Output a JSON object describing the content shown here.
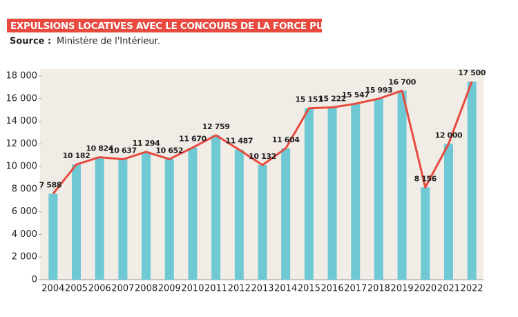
{
  "chart_data": {
    "type": "bar",
    "title": "EXPULSIONS LOCATIVES AVEC LE CONCOURS DE LA FORCE PUBLIQUE",
    "source_label": "Source :",
    "source_text": "Ministère de l'Intérieur.",
    "categories": [
      "2004",
      "2005",
      "2006",
      "2007",
      "2008",
      "2009",
      "2010",
      "2011",
      "2012",
      "2013",
      "2014",
      "2015",
      "2016",
      "2017",
      "2018",
      "2019",
      "2020",
      "2021",
      "2022"
    ],
    "values": [
      7588,
      10182,
      10824,
      10637,
      11294,
      10652,
      11670,
      12759,
      11487,
      10132,
      11604,
      15151,
      15222,
      15547,
      15993,
      16700,
      8156,
      12000,
      17500
    ],
    "value_labels": [
      "7 588",
      "10 182",
      "10 824",
      "10 637",
      "11 294",
      "10 652",
      "11 670",
      "12 759",
      "11 487",
      "10 132",
      "11 604",
      "15 151",
      "15 222",
      "15 547",
      "15 993",
      "16 700",
      "8 156",
      "12 000",
      "17 500"
    ],
    "color": "#6ec9d4",
    "overlay_line": true,
    "line_color": "#e84a3f",
    "ylim": [
      0,
      18000
    ],
    "yticks": [
      0,
      {
        "value": 2000,
        "label": "2 000"
      },
      {
        "value": 4000,
        "label": "4 000"
      },
      {
        "value": 6000,
        "label": "6 000"
      },
      {
        "value": 8000,
        "label": "8 000"
      },
      {
        "value": 10000,
        "label": "10 000"
      },
      {
        "value": 12000,
        "label": "12 000"
      },
      {
        "value": 14000,
        "label": "14 000"
      },
      {
        "value": 16000,
        "label": "16 000"
      },
      {
        "value": 18000,
        "label": "18 000"
      }
    ]
  }
}
